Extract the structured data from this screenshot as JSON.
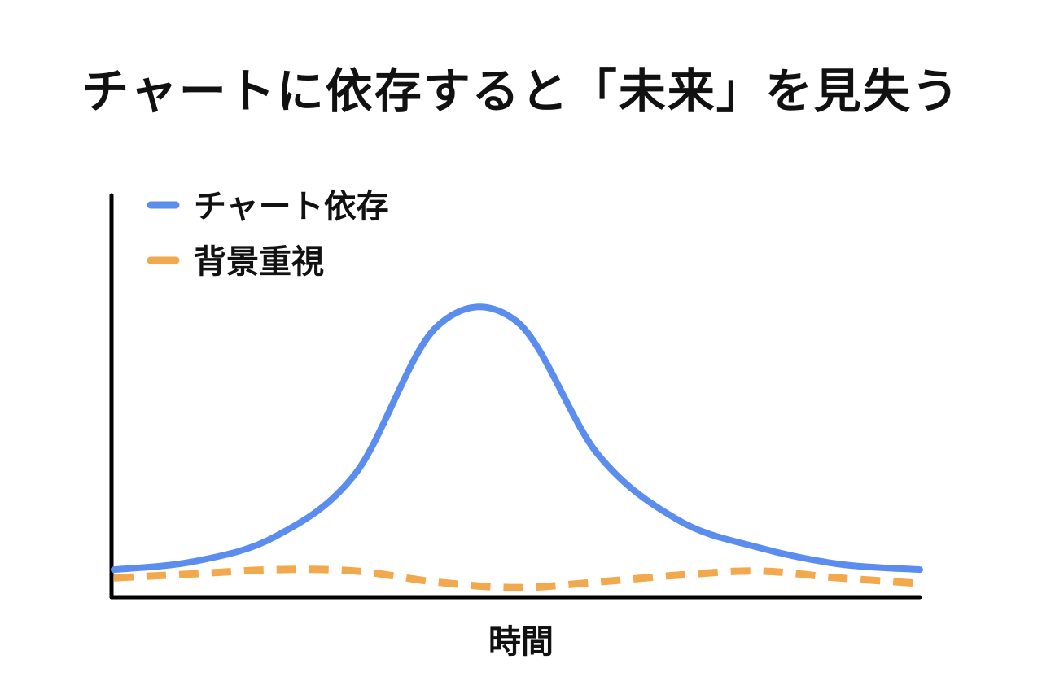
{
  "chart_data": {
    "type": "line",
    "title": "チャートに依存すると「未来」を見失う",
    "xlabel": "時間",
    "ylabel": "",
    "x_ticks": [],
    "y_ticks": [],
    "grid": false,
    "legend_position": "top-left",
    "x": [
      0,
      1,
      2,
      3,
      4,
      5,
      6,
      7,
      8,
      9,
      10
    ],
    "series": [
      {
        "name": "チャート依存",
        "color": "#5B8DEF",
        "style": "solid",
        "values": [
          1.0,
          1.3,
          2.2,
          4.5,
          9.8,
          10.0,
          5.2,
          2.8,
          1.8,
          1.2,
          1.0
        ]
      },
      {
        "name": "背景重視",
        "color": "#F2A94E",
        "style": "dashed",
        "values": [
          0.7,
          0.85,
          1.0,
          0.95,
          0.55,
          0.35,
          0.55,
          0.8,
          0.95,
          0.7,
          0.5
        ]
      }
    ]
  }
}
